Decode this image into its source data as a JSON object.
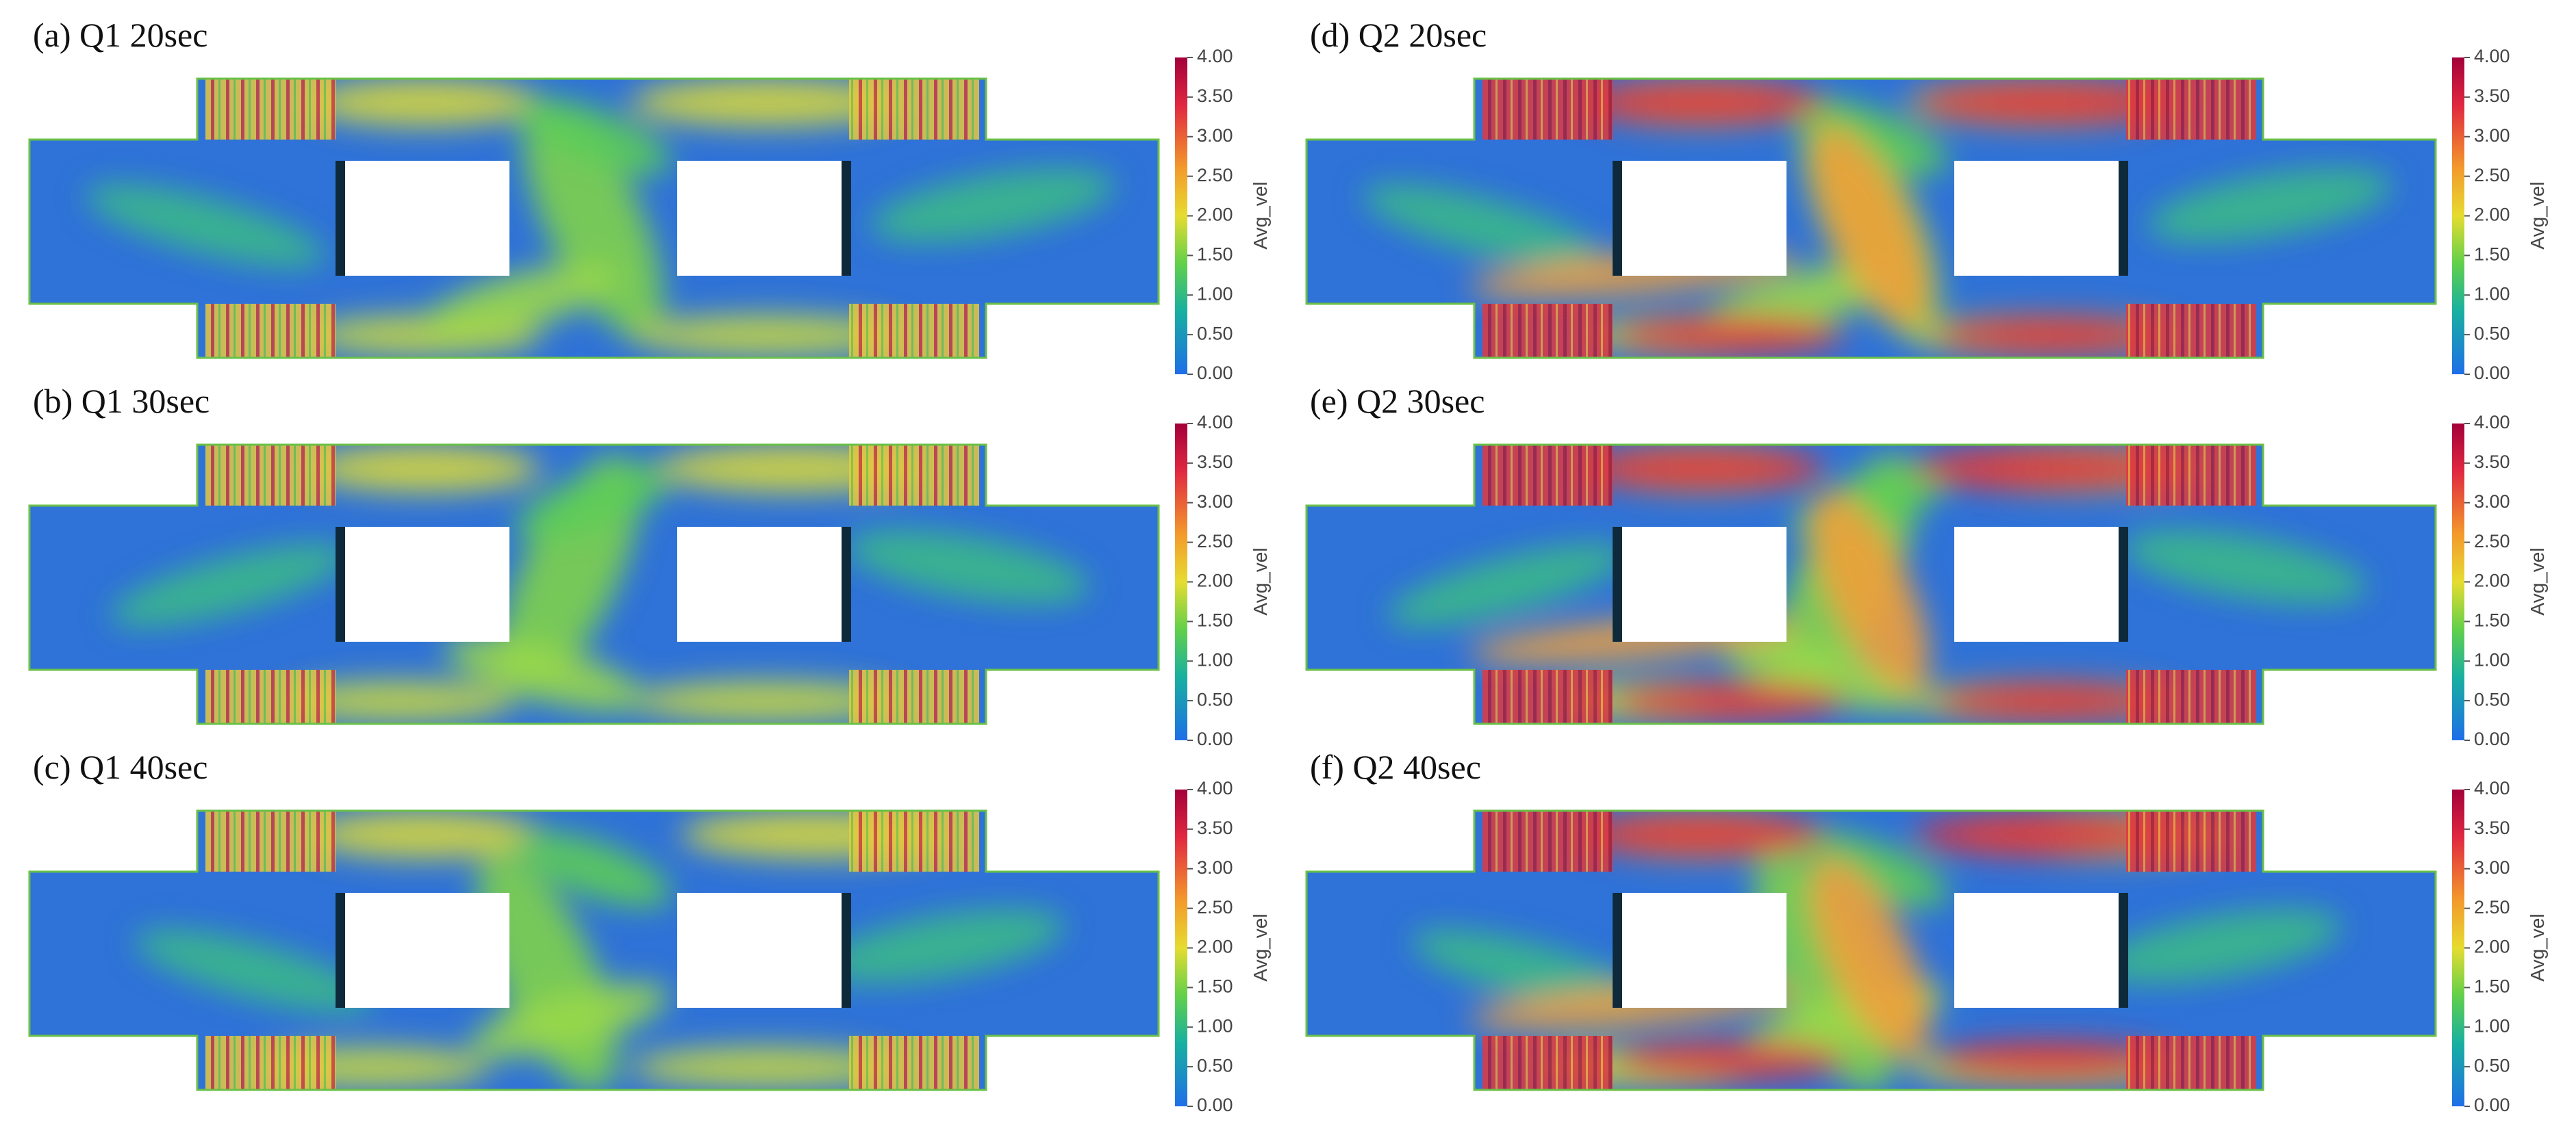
{
  "panels": [
    {
      "label": "(a) Q1 20sec",
      "colorbar": {
        "title": "Avg_vel",
        "ticks": [
          "0.00",
          "0.50",
          "1.00",
          "1.50",
          "2.00",
          "2.50",
          "3.00",
          "3.50",
          "4.00"
        ]
      }
    },
    {
      "label": "(b) Q1 30sec",
      "colorbar": {
        "title": "Avg_vel",
        "ticks": [
          "0.00",
          "0.50",
          "1.00",
          "1.50",
          "2.00",
          "2.50",
          "3.00",
          "3.50",
          "4.00"
        ]
      }
    },
    {
      "label": "(c) Q1 40sec",
      "colorbar": {
        "title": "Avg_vel",
        "ticks": [
          "0.00",
          "0.50",
          "1.00",
          "1.50",
          "2.00",
          "2.50",
          "3.00",
          "3.50",
          "4.00"
        ]
      }
    },
    {
      "label": "(d) Q2 20sec",
      "colorbar": {
        "title": "Avg_vel",
        "ticks": [
          "0.00",
          "0.50",
          "1.00",
          "1.50",
          "2.00",
          "2.50",
          "3.00",
          "3.50",
          "4.00"
        ]
      }
    },
    {
      "label": "(e) Q2 30sec",
      "colorbar": {
        "title": "Avg_vel",
        "ticks": [
          "0.00",
          "0.50",
          "1.00",
          "1.50",
          "2.00",
          "2.50",
          "3.00",
          "3.50",
          "4.00"
        ]
      }
    },
    {
      "label": "(f) Q2 40sec",
      "colorbar": {
        "title": "Avg_vel",
        "ticks": [
          "0.00",
          "0.50",
          "1.00",
          "1.50",
          "2.00",
          "2.50",
          "3.00",
          "3.50",
          "4.00"
        ]
      }
    }
  ]
}
